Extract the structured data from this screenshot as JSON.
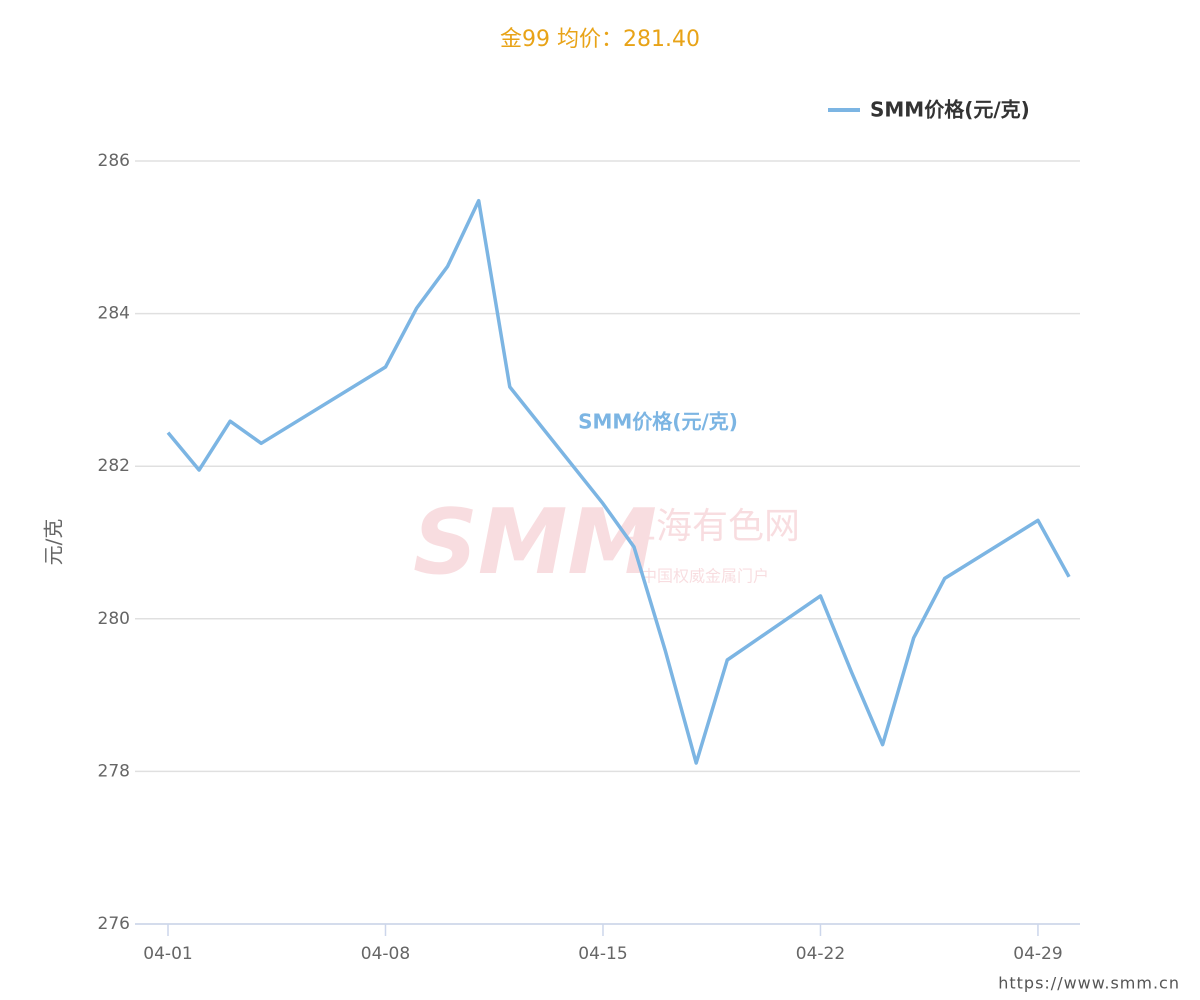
{
  "chart_data": {
    "type": "line",
    "title": "金99 均价：281.40",
    "y_label": "元/克",
    "series_label": "SMM价格(元/克)",
    "watermark": {
      "logo": "SMM",
      "name": "上海有色网",
      "slogan": "中国权威金属门户"
    },
    "footer": "https://www.smm.cn",
    "x": [
      "04-01",
      "04-02",
      "04-03",
      "04-04",
      "04-08",
      "04-09",
      "04-10",
      "04-11",
      "04-12",
      "04-15",
      "04-16",
      "04-17",
      "04-18",
      "04-19",
      "04-22",
      "04-23",
      "04-24",
      "04-25",
      "04-26",
      "04-29",
      "04-30"
    ],
    "series": [
      {
        "name": "SMM价格(元/克)",
        "color": "#7cb5e3",
        "values": [
          282.44,
          281.95,
          282.59,
          282.3,
          283.3,
          284.07,
          284.62,
          285.48,
          283.04,
          281.51,
          280.94,
          279.59,
          278.11,
          279.46,
          280.3,
          279.3,
          278.35,
          279.75,
          280.53,
          281.29,
          280.55
        ]
      }
    ],
    "xticks": [
      "04-01",
      "04-08",
      "04-15",
      "04-22",
      "04-29"
    ],
    "ylim": [
      276,
      286
    ],
    "yticks": [
      276,
      278,
      280,
      282,
      284,
      286
    ],
    "grid": true,
    "legend": "top-right"
  }
}
